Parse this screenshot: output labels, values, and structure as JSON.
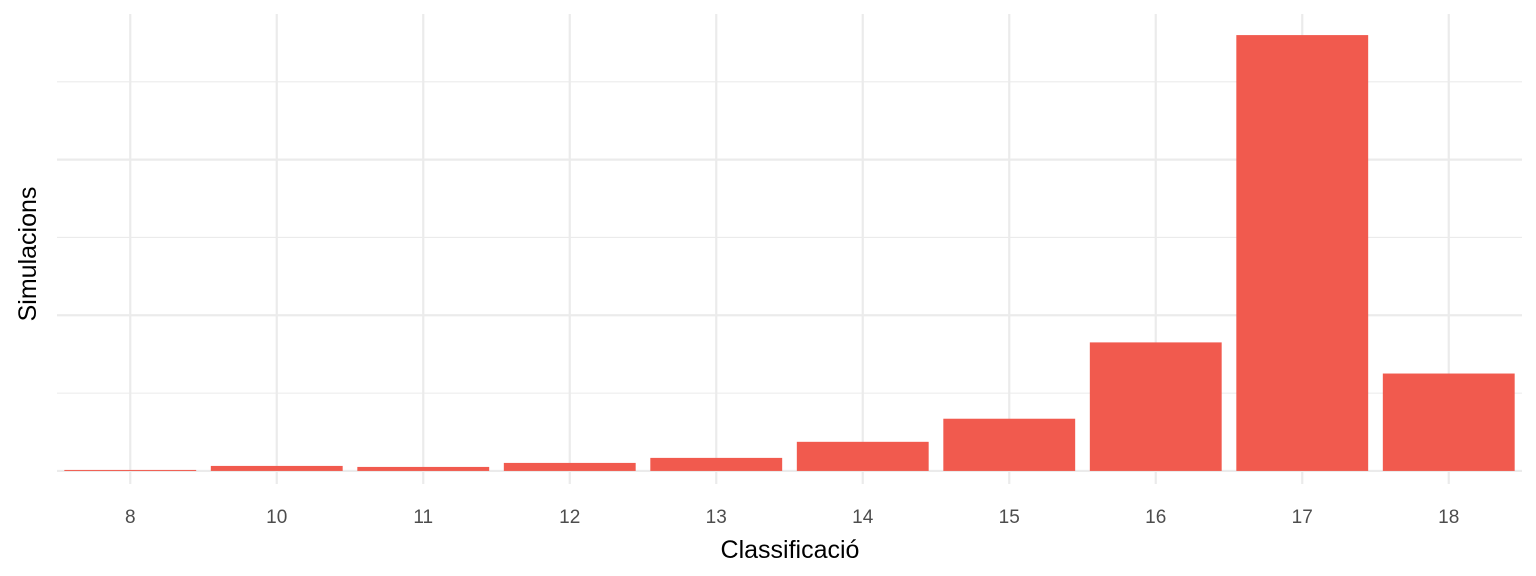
{
  "chart_data": {
    "type": "bar",
    "title": "",
    "xlabel": "Classificació",
    "ylabel": "Simulacions",
    "categories": [
      "8",
      "10",
      "11",
      "12",
      "13",
      "14",
      "15",
      "16",
      "17",
      "18"
    ],
    "series": [
      {
        "values": [
          1,
          5,
          4,
          8,
          13,
          29,
          52,
          128,
          434,
          97
        ],
        "color": "#f15a4e"
      }
    ],
    "ylim": [
      -13,
      455
    ],
    "y_major_grid": [
      0,
      155,
      310
    ],
    "y_minor_grid": [
      77.5,
      232.5,
      387.5
    ],
    "y_tick_labels_shown": false,
    "grid": true,
    "legend": "none"
  }
}
